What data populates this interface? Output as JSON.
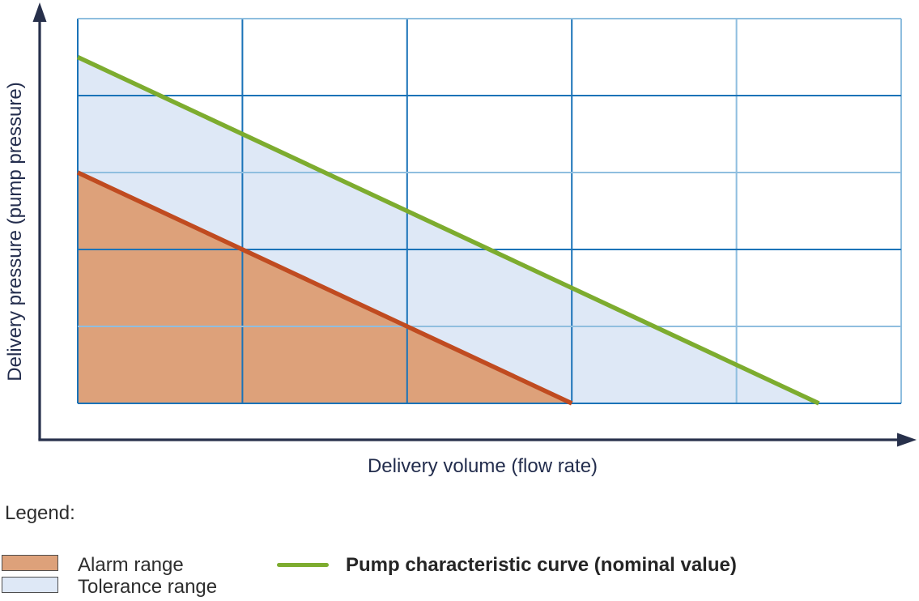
{
  "axes": {
    "x_label": "Delivery volume (flow rate)",
    "y_label": "Delivery pressure (pump pressure)"
  },
  "legend": {
    "title": "Legend:",
    "alarm": {
      "label": "Alarm range"
    },
    "tolerance": {
      "label": "Tolerance range"
    },
    "pump": {
      "label": "Pump characteristic curve (nominal value)"
    }
  },
  "colors": {
    "grid_dark": "#1a73b8",
    "grid_light": "#8fbedf",
    "axis": "#27304b",
    "green_line": "#7dac2f",
    "red_line": "#c04b20",
    "alarm_fill": "#dda17a",
    "tolerance_fill": "#dee8f6",
    "swatch_border": "#4e4e4e"
  },
  "chart_data": {
    "type": "area",
    "title": "",
    "xlabel": "Delivery volume (flow rate)",
    "ylabel": "Delivery pressure (pump pressure)",
    "xlim": [
      0,
      5
    ],
    "ylim": [
      0,
      5
    ],
    "tick_labels": "none (schematic diagram, unlabeled 5x5 grid)",
    "legend_position": "below chart",
    "areas": [
      {
        "name": "Alarm range",
        "fill": "#dda17a",
        "polygon": [
          [
            0,
            0
          ],
          [
            0,
            3
          ],
          [
            3,
            0
          ]
        ]
      },
      {
        "name": "Tolerance range",
        "fill": "#dee8f6",
        "polygon": [
          [
            0,
            3
          ],
          [
            0,
            4.5
          ],
          [
            4.5,
            0
          ],
          [
            3,
            0
          ]
        ]
      }
    ],
    "series": [
      {
        "name": "Alarm limit curve",
        "type": "line",
        "color": "#c04b20",
        "width": 5.5,
        "points": [
          [
            0,
            3
          ],
          [
            3,
            0
          ]
        ]
      },
      {
        "name": "Pump characteristic curve (nominal value)",
        "type": "line",
        "color": "#7dac2f",
        "width": 5.5,
        "points": [
          [
            0,
            4.5
          ],
          [
            4.5,
            0
          ]
        ]
      }
    ],
    "grid_style": {
      "cols": 5,
      "rows": 5,
      "v_line_colors": [
        "dark",
        "dark",
        "dark",
        "dark",
        "light",
        "light"
      ],
      "h_line_colors": [
        "light",
        "dark",
        "light",
        "dark",
        "light",
        "dark"
      ]
    }
  }
}
